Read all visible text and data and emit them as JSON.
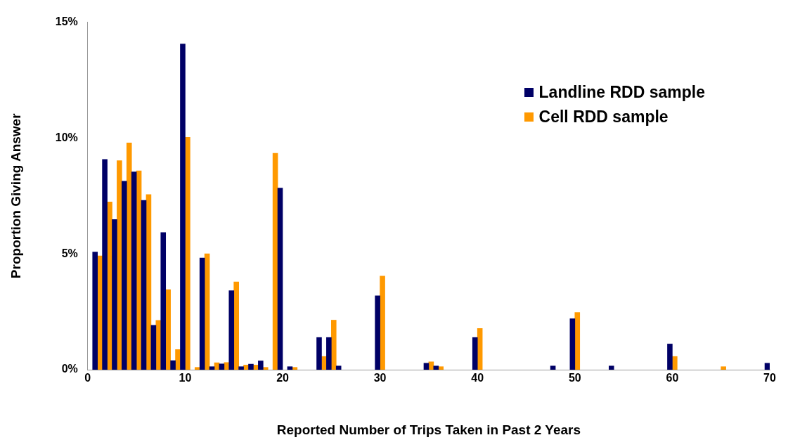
{
  "chart_data": {
    "type": "bar",
    "xlabel": "Reported Number of Trips Taken in Past 2 Years",
    "ylabel": "Proportion Giving Answer",
    "xlim": [
      0,
      70
    ],
    "xticks": [
      0,
      10,
      20,
      30,
      40,
      50,
      60,
      70
    ],
    "ylim": [
      0,
      15
    ],
    "yticks": [
      {
        "value": 0,
        "label": "0%"
      },
      {
        "value": 5,
        "label": "5%"
      },
      {
        "value": 10,
        "label": "10%"
      },
      {
        "value": 15,
        "label": "15%"
      }
    ],
    "grid": false,
    "legend": "top right",
    "series": [
      {
        "name": "Landline RDD sample",
        "color": "#000066",
        "x": [
          1,
          2,
          3,
          4,
          5,
          6,
          7,
          8,
          9,
          10,
          12,
          13,
          14,
          15,
          16,
          17,
          18,
          20,
          21,
          24,
          25,
          26,
          30,
          35,
          36,
          40,
          48,
          50,
          54,
          60,
          70
        ],
        "values": [
          5.08,
          9.08,
          6.48,
          8.14,
          8.54,
          7.31,
          1.92,
          5.92,
          0.39,
          14.06,
          4.82,
          0.13,
          0.25,
          3.41,
          0.13,
          0.24,
          0.38,
          7.84,
          0.13,
          1.39,
          1.39,
          0.16,
          3.19,
          0.28,
          0.16,
          1.39,
          0.16,
          2.2,
          0.16,
          1.11,
          0.28
        ]
      },
      {
        "name": "Cell RDD sample",
        "color": "#ff9900",
        "x": [
          1,
          2,
          3,
          4,
          5,
          6,
          7,
          8,
          9,
          10,
          11,
          12,
          13,
          14,
          15,
          16,
          17,
          18,
          19,
          21,
          24,
          25,
          30,
          35,
          36,
          40,
          50,
          60,
          65
        ],
        "values": [
          4.91,
          7.24,
          9.02,
          9.79,
          8.58,
          7.56,
          2.13,
          3.46,
          0.87,
          10.03,
          0.1,
          5.0,
          0.3,
          0.31,
          3.79,
          0.2,
          0.2,
          0.1,
          9.34,
          0.1,
          0.57,
          2.14,
          4.04,
          0.34,
          0.13,
          1.78,
          2.47,
          0.57,
          0.13
        ]
      }
    ]
  }
}
